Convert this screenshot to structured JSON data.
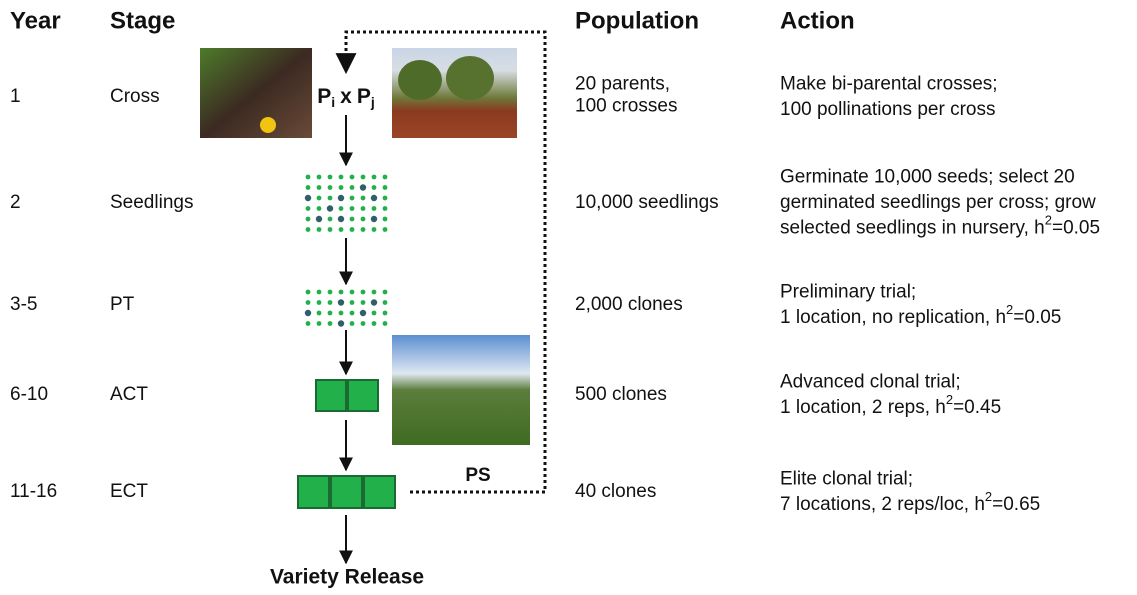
{
  "header": {
    "year": "Year",
    "stage": "Stage",
    "population": "Population",
    "action": "Action"
  },
  "rows": [
    {
      "year": "1",
      "stage": "Cross",
      "population": [
        "20 parents,",
        "100 crosses"
      ],
      "action": [
        {
          "text": "Make bi-parental crosses;"
        },
        {
          "text": "100 pollinations per cross"
        }
      ]
    },
    {
      "year": "2",
      "stage": "Seedlings",
      "population": [
        "10,000 seedlings"
      ],
      "action": [
        {
          "text": "Germinate 10,000 seeds; select 20"
        },
        {
          "text": "germinated seedlings per cross; grow"
        },
        {
          "text": "selected seedlings in nursery, h",
          "sup": "2",
          "after": "=0.05"
        }
      ]
    },
    {
      "year": "3-5",
      "stage": "PT",
      "population": [
        "2,000 clones"
      ],
      "action": [
        {
          "text": "Preliminary trial;"
        },
        {
          "text": "1 location, no replication, h",
          "sup": "2",
          "after": "=0.05"
        }
      ]
    },
    {
      "year": "6-10",
      "stage": "ACT",
      "population": [
        "500 clones"
      ],
      "action": [
        {
          "text": "Advanced clonal trial;"
        },
        {
          "text": "1 location, 2 reps, h",
          "sup": "2",
          "after": "=0.45"
        }
      ]
    },
    {
      "year": "11-16",
      "stage": "ECT",
      "population": [
        "40 clones"
      ],
      "action": [
        {
          "text": "Elite clonal trial;"
        },
        {
          "text": "7 locations, 2 reps/loc, h",
          "sup": "2",
          "after": "=0.65"
        }
      ]
    }
  ],
  "flow": {
    "parent_i": {
      "base": "P",
      "sub": "i"
    },
    "times": "x",
    "parent_j": {
      "base": "P",
      "sub": "j"
    },
    "feedback": "PS",
    "output": "Variety Release"
  }
}
